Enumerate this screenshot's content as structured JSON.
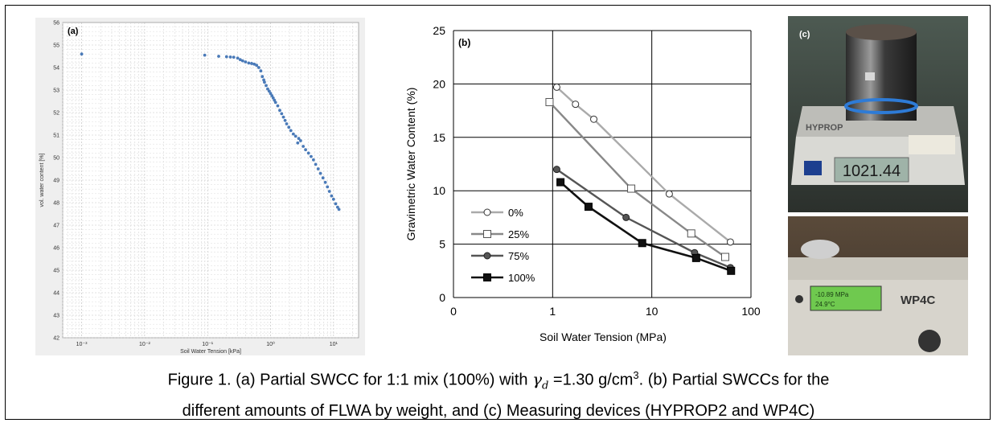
{
  "chart_data": [
    {
      "type": "scatter",
      "panel_label": "(a)",
      "xlabel": "Soil Water Tension [kPa]",
      "ylabel": "vol. water content [%]",
      "xscale": "log",
      "x_ticks": [
        "10⁻³",
        "10⁻²",
        "10⁻¹",
        "10⁰",
        "10¹"
      ],
      "y_ticks": [
        "42",
        "43",
        "44",
        "45",
        "46",
        "47",
        "48",
        "49",
        "50",
        "51",
        "52",
        "53",
        "54",
        "55",
        "56"
      ],
      "ylim": [
        42,
        56
      ],
      "xlim_kpa": [
        0.0005,
        25
      ],
      "grid": true,
      "color": "#4a7ab8",
      "points": [
        [
          0.001,
          54.6
        ],
        [
          0.09,
          54.55
        ],
        [
          0.15,
          54.5
        ],
        [
          0.2,
          54.48
        ],
        [
          0.23,
          54.47
        ],
        [
          0.26,
          54.46
        ],
        [
          0.3,
          54.42
        ],
        [
          0.33,
          54.35
        ],
        [
          0.36,
          54.3
        ],
        [
          0.4,
          54.25
        ],
        [
          0.45,
          54.2
        ],
        [
          0.5,
          54.18
        ],
        [
          0.55,
          54.15
        ],
        [
          0.6,
          54.1
        ],
        [
          0.65,
          54.0
        ],
        [
          0.7,
          53.85
        ],
        [
          0.74,
          53.6
        ],
        [
          0.78,
          53.45
        ],
        [
          0.8,
          53.35
        ],
        [
          0.85,
          53.2
        ],
        [
          0.9,
          53.05
        ],
        [
          0.95,
          52.95
        ],
        [
          1.0,
          52.85
        ],
        [
          1.05,
          52.75
        ],
        [
          1.1,
          52.65
        ],
        [
          1.15,
          52.55
        ],
        [
          1.2,
          52.45
        ],
        [
          1.3,
          52.3
        ],
        [
          1.4,
          52.1
        ],
        [
          1.5,
          51.95
        ],
        [
          1.6,
          51.8
        ],
        [
          1.7,
          51.65
        ],
        [
          1.8,
          51.5
        ],
        [
          1.95,
          51.35
        ],
        [
          2.1,
          51.2
        ],
        [
          2.3,
          51.05
        ],
        [
          2.5,
          50.95
        ],
        [
          2.8,
          50.85
        ],
        [
          3.0,
          50.75
        ],
        [
          2.7,
          50.65
        ],
        [
          3.3,
          50.5
        ],
        [
          3.6,
          50.35
        ],
        [
          4.0,
          50.2
        ],
        [
          4.4,
          50.05
        ],
        [
          4.8,
          49.9
        ],
        [
          5.2,
          49.7
        ],
        [
          5.7,
          49.5
        ],
        [
          6.2,
          49.3
        ],
        [
          6.8,
          49.1
        ],
        [
          7.4,
          48.9
        ],
        [
          8.0,
          48.7
        ],
        [
          8.6,
          48.5
        ],
        [
          9.3,
          48.3
        ],
        [
          10.0,
          48.15
        ],
        [
          10.8,
          47.95
        ],
        [
          11.6,
          47.8
        ],
        [
          12.2,
          47.7
        ]
      ]
    },
    {
      "type": "line",
      "panel_label": "(b)",
      "xlabel": "Soil Water Tension (MPa)",
      "ylabel": "Gravimetric Water Content (%)",
      "xscale": "log",
      "xlim": [
        0,
        100
      ],
      "x_ticks": [
        "0",
        "1",
        "10",
        "100"
      ],
      "ylim": [
        0,
        25
      ],
      "y_ticks": [
        "0",
        "5",
        "10",
        "15",
        "20",
        "25"
      ],
      "grid": true,
      "legend_position": "bottom-left",
      "series": [
        {
          "name": "0%",
          "marker": "circle-open",
          "color": "#aaaaaa",
          "points": [
            [
              1.1,
              19.7
            ],
            [
              1.7,
              18.1
            ],
            [
              2.6,
              16.7
            ],
            [
              15,
              9.7
            ],
            [
              62,
              5.2
            ]
          ]
        },
        {
          "name": "25%",
          "marker": "square-open",
          "color": "#888888",
          "points": [
            [
              0.93,
              18.3
            ],
            [
              6.2,
              10.2
            ],
            [
              25,
              6.0
            ],
            [
              55,
              3.8
            ]
          ]
        },
        {
          "name": "75%",
          "marker": "circle-filled",
          "color": "#555555",
          "points": [
            [
              1.1,
              12.0
            ],
            [
              5.5,
              7.5
            ],
            [
              27,
              4.2
            ],
            [
              62,
              2.8
            ]
          ]
        },
        {
          "name": "100%",
          "marker": "square-filled",
          "color": "#111111",
          "points": [
            [
              1.2,
              10.8
            ],
            [
              2.3,
              8.5
            ],
            [
              8,
              5.1
            ],
            [
              28,
              3.7
            ],
            [
              63,
              2.5
            ]
          ]
        }
      ]
    }
  ],
  "photo": {
    "panel_label": "(c)",
    "scale_brand": "HYPROP",
    "scale_display": "1021.44",
    "meter_brand": "WP4C",
    "meter_display_line1": "-10.89 MPa",
    "meter_display_line2": "24.9°C"
  },
  "caption": {
    "line1_a": "Figure 1. (a) Partial SWCC for 1:1 mix (100%) with ",
    "gamma_symbol": "γ",
    "gamma_sub": "d",
    "line1_b": " =1.30 g/cm",
    "line1_sup": "3",
    "line1_c": ". (b) Partial SWCCs for the",
    "line2": "different amounts of FLWA by weight, and (c) Measuring devices (HYPROP2 and WP4C)"
  }
}
